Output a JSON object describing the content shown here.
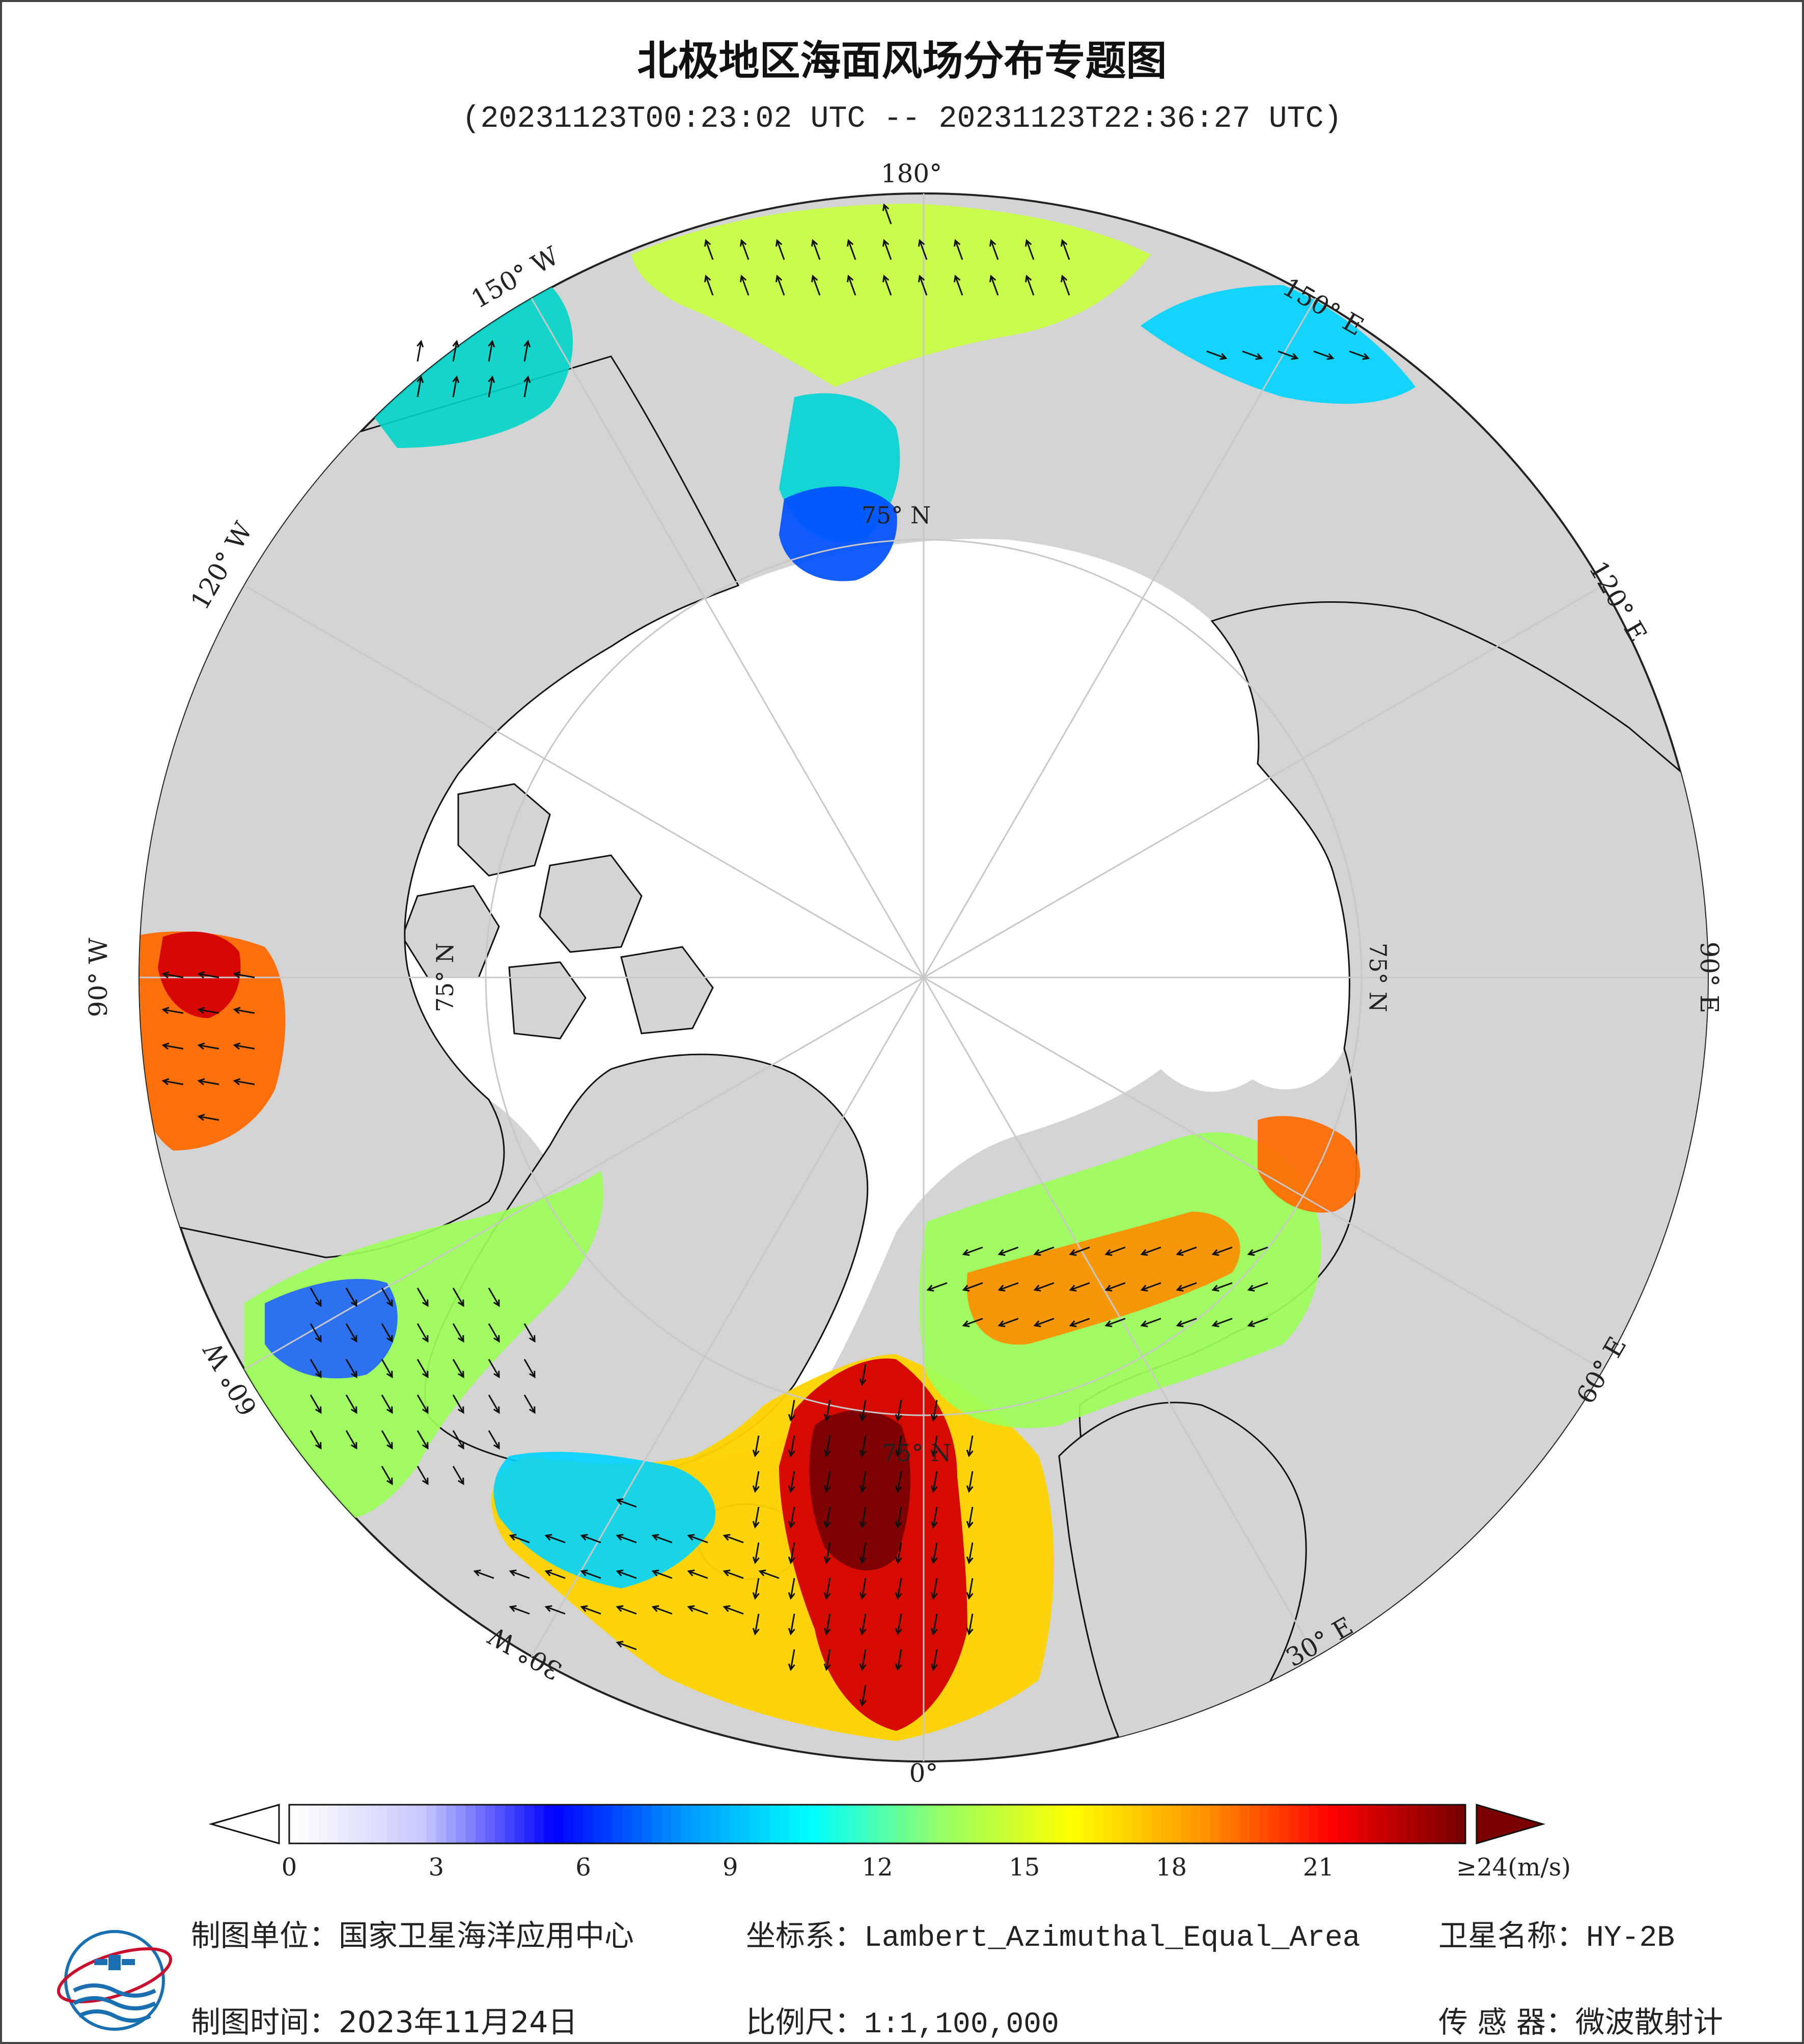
{
  "header": {
    "title": "北极地区海面风场分布专题图",
    "time_range": "(20231123T00:23:02 UTC -- 20231123T22:36:27 UTC)"
  },
  "map": {
    "projection": "Lambert_Azimuthal_Equal_Area",
    "center": "North Pole",
    "longitude_labels": [
      "180°",
      "150° E",
      "120° E",
      "90° E",
      "60° E",
      "30° E",
      "0°",
      "30° W",
      "60° W",
      "90° W",
      "120° W",
      "150° W"
    ],
    "latitude_label": "75° N",
    "land_color": "#d4d4d4",
    "ice_color": "#ffffff",
    "graticule_color": "#c8c8c8"
  },
  "colorbar": {
    "unit": "(m/s)",
    "min": 0,
    "max": 24,
    "ticks": [
      "0",
      "3",
      "6",
      "9",
      "12",
      "15",
      "18",
      "21",
      "≥24"
    ],
    "tick_values": [
      0,
      3,
      6,
      9,
      12,
      15,
      18,
      21,
      24
    ],
    "colors": [
      "#ffffff",
      "#c8c8ff",
      "#0000ff",
      "#0096ff",
      "#00ffff",
      "#96ff64",
      "#ffff00",
      "#ff9600",
      "#ff0000",
      "#780000"
    ],
    "over_color": "#7a0000",
    "under_color": "#ffffff"
  },
  "footer": {
    "producer_label": "制图单位：",
    "producer_value": "国家卫星海洋应用中心",
    "crs_label": "坐标系：",
    "crs_value": "Lambert_Azimuthal_Equal_Area",
    "satellite_label": "卫星名称：",
    "satellite_value": "HY-2B",
    "date_label": "制图时间：",
    "date_value": "2023年11月24日",
    "scale_label": "比例尺：",
    "scale_value": "1:1,100,000",
    "sensor_label": "传 感 器：",
    "sensor_value": "微波散射计"
  }
}
